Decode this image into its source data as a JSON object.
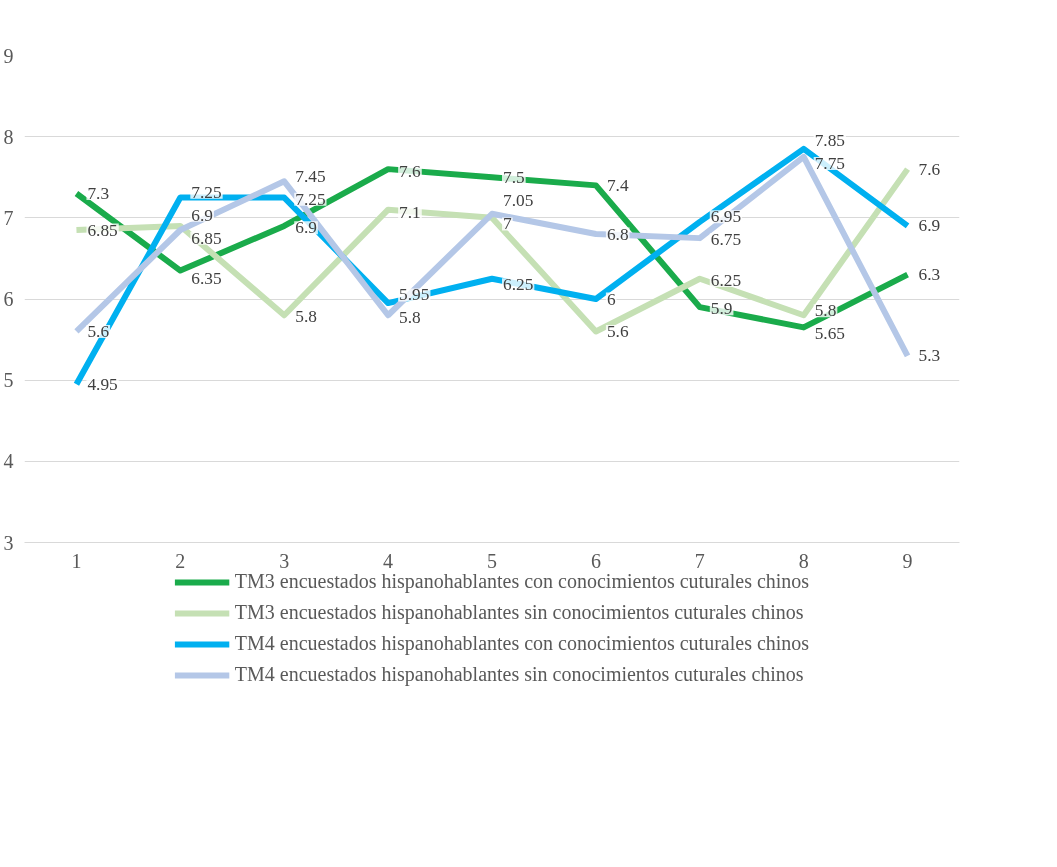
{
  "chart_data": {
    "type": "line",
    "categories": [
      "1",
      "2",
      "3",
      "4",
      "5",
      "6",
      "7",
      "8",
      "9"
    ],
    "series": [
      {
        "name": "TM3 encuestados hispanohablantes con conocimientos cuturales chinos",
        "color": "#1aab4b",
        "values": [
          7.3,
          6.35,
          6.9,
          7.6,
          7.5,
          7.4,
          5.9,
          5.65,
          6.3
        ]
      },
      {
        "name": "TM3 encuestados hispanohablantes sin conocimientos cuturales chinos",
        "color": "#c5e0b4",
        "values": [
          6.85,
          6.9,
          5.8,
          7.1,
          7,
          5.6,
          6.25,
          5.8,
          7.6
        ]
      },
      {
        "name": "TM4 encuestados hispanohablantes con conocimientos cuturales chinos",
        "color": "#00b0f0",
        "values": [
          4.95,
          7.25,
          7.25,
          5.95,
          6.25,
          6,
          6.95,
          7.85,
          6.9
        ]
      },
      {
        "name": "TM4 encuestados hispanohablantes sin conocimientos cuturales chinos",
        "color": "#b4c7e7",
        "values": [
          5.6,
          6.85,
          7.45,
          5.8,
          7.05,
          6.8,
          6.75,
          7.75,
          5.3
        ]
      }
    ],
    "ylim": [
      3,
      9
    ],
    "yticks": [
      3,
      4,
      5,
      6,
      7,
      8,
      9
    ],
    "grid": "y",
    "legend": "bottom",
    "data_labels": true,
    "marker": "none",
    "line_style": "solid"
  }
}
